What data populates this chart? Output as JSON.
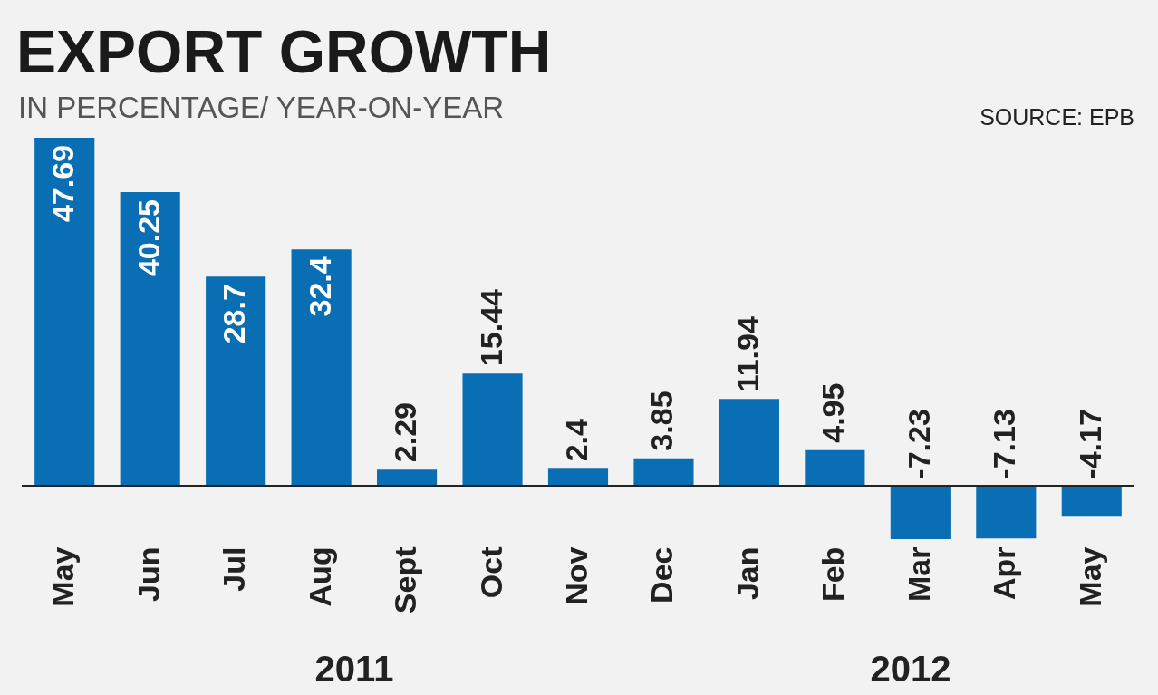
{
  "chart_data": {
    "type": "bar",
    "title": "EXPORT GROWTH",
    "subtitle": "IN PERCENTAGE/ YEAR-ON-YEAR",
    "categories": [
      "May",
      "Jun",
      "Jul",
      "Aug",
      "Sept",
      "Oct",
      "Nov",
      "Dec",
      "Jan",
      "Feb",
      "Mar",
      "Apr",
      "May"
    ],
    "values": [
      47.69,
      40.25,
      28.7,
      32.4,
      2.29,
      15.44,
      2.4,
      3.85,
      11.94,
      4.95,
      -7.23,
      -7.13,
      -4.17
    ],
    "color": "#0a6eb4",
    "data_labels": true,
    "tick_labels": "x",
    "grid": false,
    "annotations": [
      "SOURCE: EPB",
      "2011",
      "2012"
    ]
  }
}
